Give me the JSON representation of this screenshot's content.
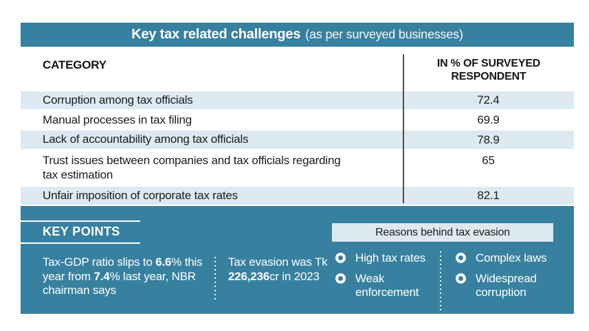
{
  "header": {
    "title": "Key tax related challenges",
    "subtitle": "(as per surveyed businesses)"
  },
  "table": {
    "category_header": "CATEGORY",
    "value_header": "IN % OF SURVEYED RESPONDENT",
    "rows": [
      {
        "category": "Corruption among tax officials",
        "value": "72.4"
      },
      {
        "category": "Manual processes in tax filing",
        "value": "69.9"
      },
      {
        "category": "Lack of accountability among tax officials",
        "value": "78.9"
      },
      {
        "category": "Trust issues between companies and tax officials regarding tax estimation",
        "value": "65"
      },
      {
        "category": "Unfair imposition of corporate tax rates",
        "value": "82.1"
      }
    ]
  },
  "key_points": {
    "heading": "KEY POINTS",
    "p1": {
      "s1": "Tax-GDP ratio slips to ",
      "b1": "6.6",
      "s2": "% this year from ",
      "b2": "7.4",
      "s3": "% last year, NBR chairman says"
    },
    "p2": {
      "s1": "Tax evasion was Tk ",
      "b1": "226,236",
      "s2": "cr in 2023"
    }
  },
  "reasons": {
    "heading": "Reasons behind tax evasion",
    "column_a": [
      "High tax rates",
      "Weak enforcement"
    ],
    "column_b": [
      "Complex laws",
      "Widespread corruption"
    ]
  },
  "colors": {
    "teal": "#37809f",
    "row_blue": "#dde9f1",
    "reasons_bg": "#dde9f1",
    "text_dark": "#1b1b1b",
    "white": "#ffffff"
  },
  "chart_data": {
    "type": "table",
    "title": "Key tax related challenges (as per surveyed businesses)",
    "columns": [
      "CATEGORY",
      "IN % OF SURVEYED RESPONDENT"
    ],
    "rows": [
      [
        "Corruption among tax officials",
        72.4
      ],
      [
        "Manual processes in tax filing",
        69.9
      ],
      [
        "Lack of accountability among tax officials",
        78.9
      ],
      [
        "Trust issues between companies and tax officials regarding tax estimation",
        65
      ],
      [
        "Unfair imposition of corporate tax rates",
        82.1
      ]
    ],
    "annotations": [
      "Tax-GDP ratio slips to 6.6% this year from 7.4% last year, NBR chairman says",
      "Tax evasion was Tk 226,236cr in 2023",
      "Reasons behind tax evasion: High tax rates, Weak enforcement, Complex laws, Widespread corruption"
    ]
  }
}
